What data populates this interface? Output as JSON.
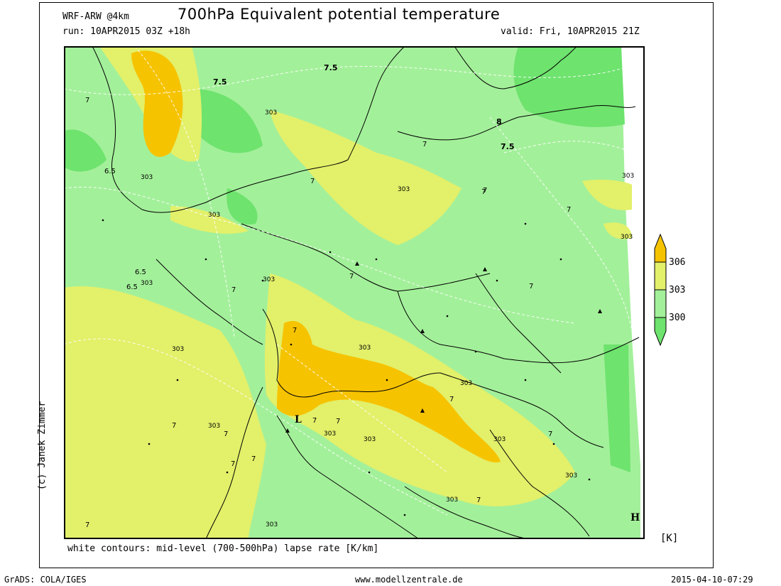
{
  "header": {
    "model": "WRF-ARW @4km",
    "title": "700hPa Equivalent potential temperature",
    "run": "run: 10APR2015 03Z +18h",
    "valid": "valid: Fri, 10APR2015 21Z"
  },
  "footer": {
    "note": "white contours: mid-level (700-500hPa) lapse rate [K/km]",
    "unit": "[K]",
    "software": "GrADS: COLA/IGES",
    "website": "www.modellzentrale.de",
    "timestamp": "2015-04-10-07:29"
  },
  "copyright": "(c) Janek Zimmer",
  "legend": {
    "labels": [
      "306",
      "303",
      "300"
    ],
    "colors": {
      "above_306": "#f6c300",
      "303_306": "#e2f06a",
      "300_303": "#a3f09a",
      "below_300": "#6ee36e"
    }
  },
  "map": {
    "pressure_marks": {
      "low": "L",
      "high": "H"
    },
    "contour_303": [
      "303",
      "303",
      "303",
      "303",
      "303",
      "303",
      "303",
      "303",
      "303",
      "303",
      "303",
      "303",
      "303",
      "303",
      "303",
      "303",
      "303",
      "303"
    ],
    "lapse_rate_labels": [
      "7",
      "7",
      "7",
      "7",
      "7",
      "7",
      "7",
      "7",
      "7",
      "7",
      "7",
      "7",
      "7",
      "7",
      "7",
      "7",
      "7",
      "7",
      "7",
      "7"
    ],
    "lapse_rate_bold": [
      "7.5",
      "7.5",
      "7.5",
      "8"
    ],
    "lapse_rate_65": [
      "6.5",
      "6.5",
      "6.5"
    ]
  }
}
